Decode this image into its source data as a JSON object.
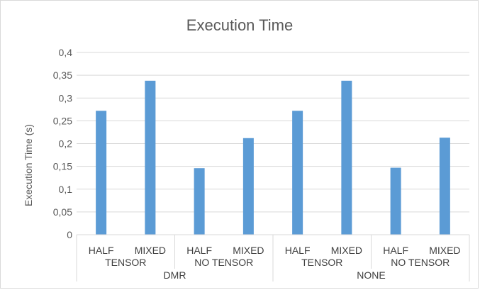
{
  "chart_data": {
    "type": "bar",
    "title": "Execution Time",
    "ylabel": "Execution Time (s)",
    "xlabel": "",
    "ylim": [
      0,
      0.4
    ],
    "yticks": [
      "0",
      "0,05",
      "0,1",
      "0,15",
      "0,2",
      "0,25",
      "0,3",
      "0,35",
      "0,4"
    ],
    "grid": true,
    "legend": "none",
    "bar_color": "#5b9bd5",
    "groups": [
      {
        "label": "DMR",
        "subgroups": [
          {
            "label": "TENSOR",
            "categories": [
              "HALF",
              "MIXED"
            ],
            "values": [
              0.272,
              0.338
            ]
          },
          {
            "label": "NO TENSOR",
            "categories": [
              "HALF",
              "MIXED"
            ],
            "values": [
              0.146,
              0.212
            ]
          }
        ]
      },
      {
        "label": "NONE",
        "subgroups": [
          {
            "label": "TENSOR",
            "categories": [
              "HALF",
              "MIXED"
            ],
            "values": [
              0.272,
              0.338
            ]
          },
          {
            "label": "NO TENSOR",
            "categories": [
              "HALF",
              "MIXED"
            ],
            "values": [
              0.147,
              0.213
            ]
          }
        ]
      }
    ]
  }
}
